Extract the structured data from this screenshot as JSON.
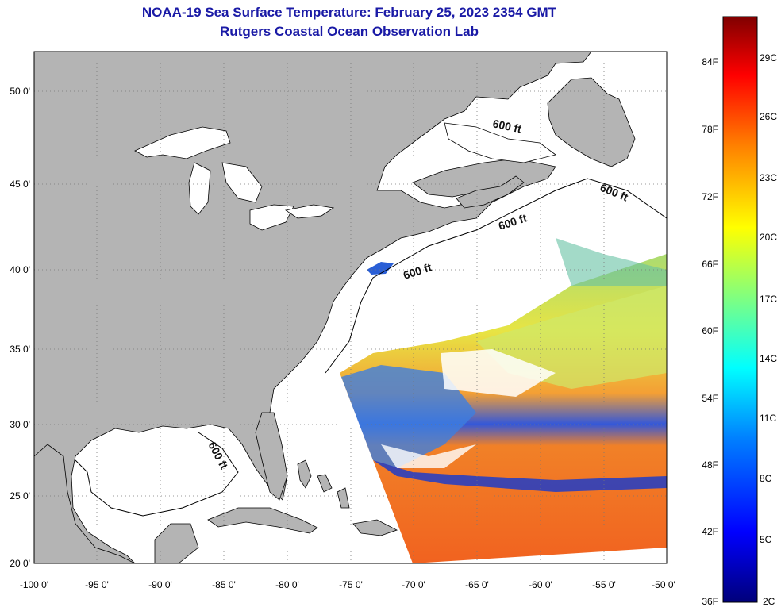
{
  "title": "NOAA-19 Sea Surface Temperature:  February 25, 2023 2354 GMT",
  "subtitle": "Rutgers Coastal Ocean Observation Lab",
  "map": {
    "lon_ticks": [
      "-100 0'",
      "-95 0'",
      "-90 0'",
      "-85 0'",
      "-80 0'",
      "-75 0'",
      "-70 0'",
      "-65 0'",
      "-60 0'",
      "-55 0'",
      "-50 0'"
    ],
    "lat_ticks": [
      "50 0'",
      "45 0'",
      "40 0'",
      "35 0'",
      "30 0'",
      "25 0'",
      "20 0'"
    ],
    "contour_label": "600 ft",
    "land_color": "#b4b4b4",
    "ocean_color": "#ffffff"
  },
  "colorbar": {
    "f_labels": [
      "84F",
      "78F",
      "72F",
      "66F",
      "60F",
      "54F",
      "48F",
      "42F",
      "36F"
    ],
    "c_labels": [
      "29C",
      "26C",
      "23C",
      "20C",
      "17C",
      "14C",
      "11C",
      "8C",
      "5C",
      "2C"
    ],
    "colors": [
      "#000080",
      "#0000ff",
      "#0080ff",
      "#00ffff",
      "#80ff80",
      "#ffff00",
      "#ff8000",
      "#ff0000",
      "#800000"
    ]
  }
}
